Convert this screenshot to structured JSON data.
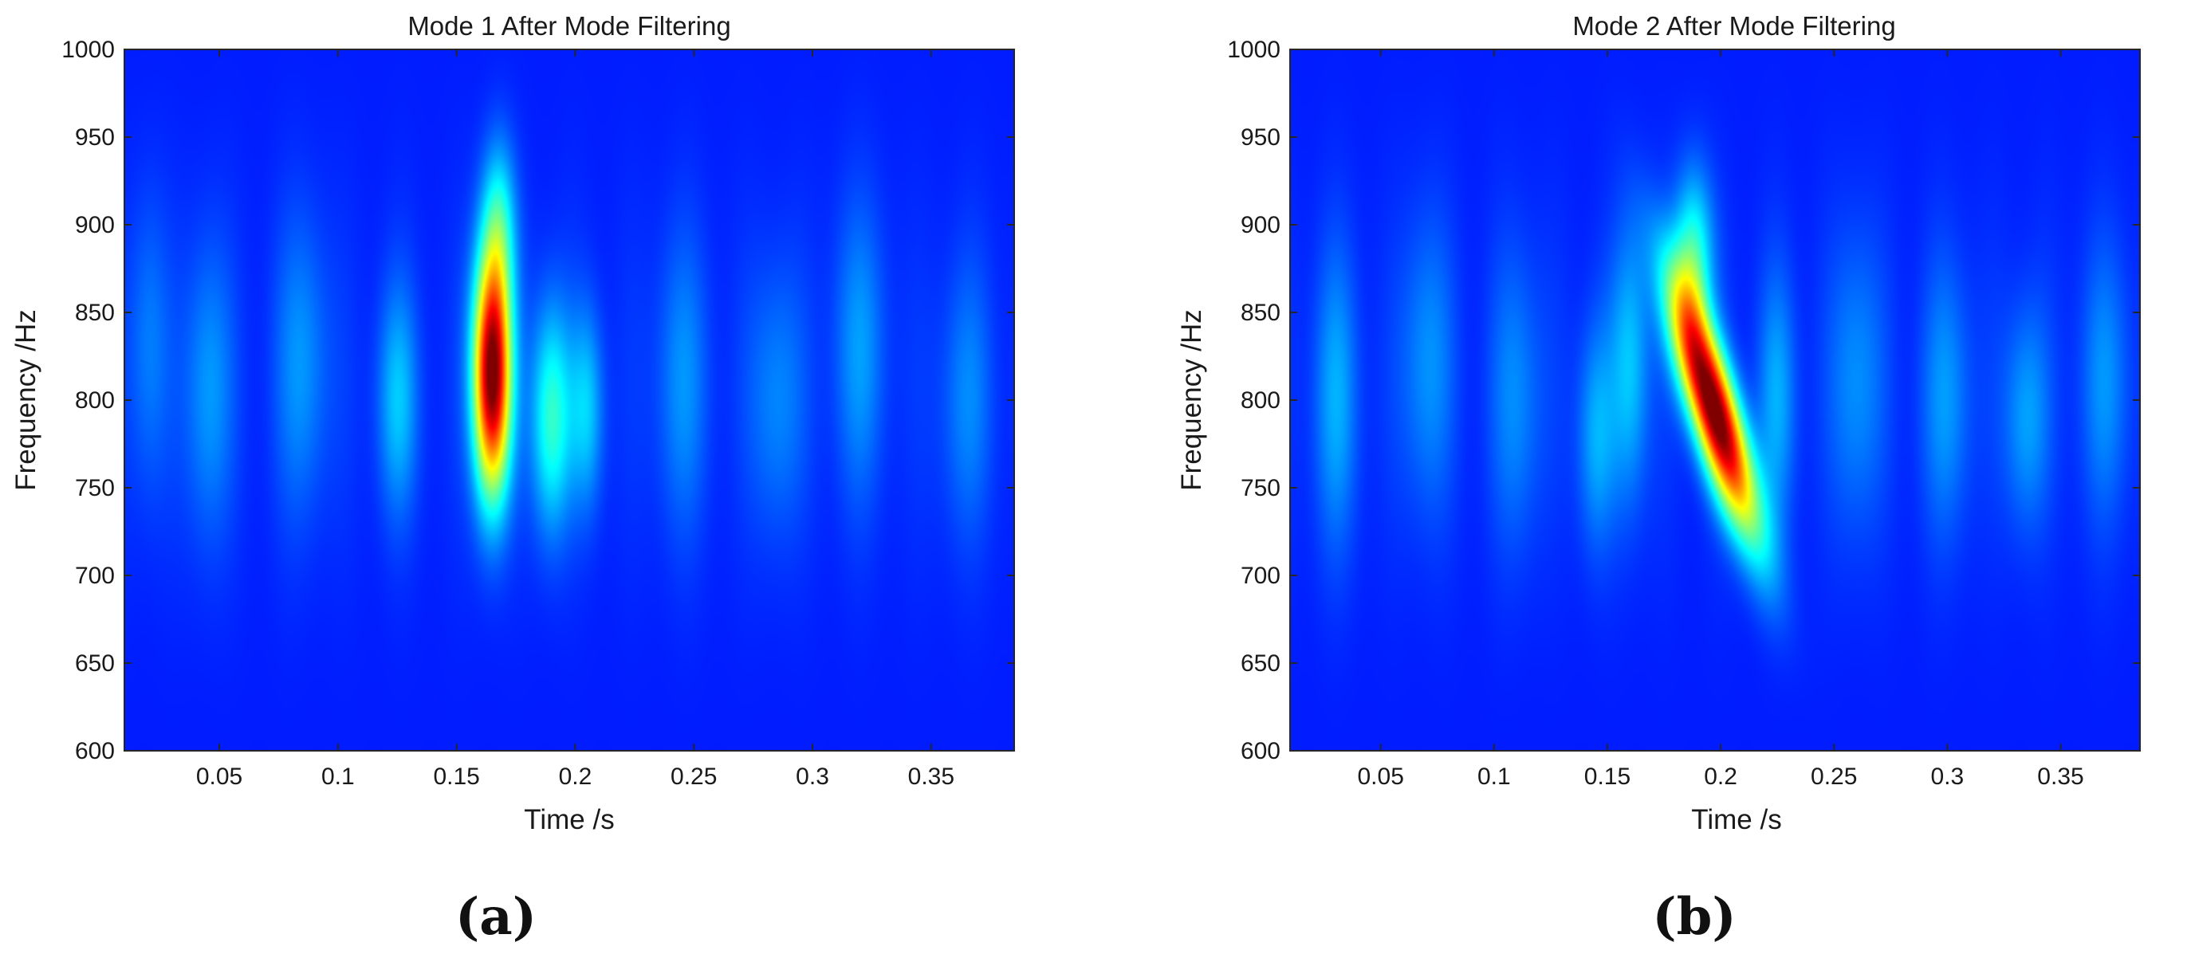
{
  "figure": {
    "captions": [
      "(a)",
      "(b)"
    ]
  },
  "chart_data": [
    {
      "type": "heatmap",
      "title": "Mode 1 After Mode Filtering",
      "xlabel": "Time /s",
      "ylabel": "Frequency /Hz",
      "xlim": [
        0.01,
        0.385
      ],
      "ylim": [
        600,
        1000
      ],
      "xticks": [
        0.05,
        0.1,
        0.15,
        0.2,
        0.25,
        0.3,
        0.35
      ],
      "xtick_labels": [
        "0.05",
        "0.1",
        "0.15",
        "0.2",
        "0.25",
        "0.3",
        "0.35"
      ],
      "yticks": [
        600,
        650,
        700,
        750,
        800,
        850,
        900,
        950,
        1000
      ],
      "ytick_labels": [
        "600",
        "650",
        "700",
        "750",
        "800",
        "850",
        "900",
        "950",
        "1000"
      ],
      "colormap": "jet",
      "peak": {
        "time": 0.165,
        "frequency": 810,
        "intensity": 1.0
      },
      "blobs": [
        {
          "t": 0.165,
          "f": 815,
          "st": 0.0055,
          "sf": 48,
          "a": 1.0,
          "tilt": 0
        },
        {
          "t": 0.168,
          "f": 900,
          "st": 0.005,
          "sf": 35,
          "a": 0.22,
          "tilt": 0
        },
        {
          "t": 0.19,
          "f": 790,
          "st": 0.006,
          "sf": 45,
          "a": 0.3,
          "tilt": 0
        },
        {
          "t": 0.205,
          "f": 795,
          "st": 0.005,
          "sf": 40,
          "a": 0.18,
          "tilt": 0
        },
        {
          "t": 0.125,
          "f": 800,
          "st": 0.006,
          "sf": 45,
          "a": 0.17,
          "tilt": 0
        },
        {
          "t": 0.045,
          "f": 805,
          "st": 0.007,
          "sf": 60,
          "a": 0.13,
          "tilt": 0
        },
        {
          "t": 0.085,
          "f": 820,
          "st": 0.008,
          "sf": 60,
          "a": 0.12,
          "tilt": 0
        },
        {
          "t": 0.245,
          "f": 810,
          "st": 0.008,
          "sf": 60,
          "a": 0.11,
          "tilt": 0
        },
        {
          "t": 0.285,
          "f": 800,
          "st": 0.008,
          "sf": 55,
          "a": 0.11,
          "tilt": 0
        },
        {
          "t": 0.32,
          "f": 830,
          "st": 0.008,
          "sf": 60,
          "a": 0.12,
          "tilt": 0
        },
        {
          "t": 0.365,
          "f": 800,
          "st": 0.008,
          "sf": 55,
          "a": 0.1,
          "tilt": 0
        },
        {
          "t": 0.02,
          "f": 830,
          "st": 0.006,
          "sf": 60,
          "a": 0.1,
          "tilt": 0
        }
      ]
    },
    {
      "type": "heatmap",
      "title": "Mode 2 After Mode Filtering",
      "xlabel": "Time /s",
      "ylabel": "Frequency /Hz",
      "xlim": [
        0.01,
        0.385
      ],
      "ylim": [
        600,
        1000
      ],
      "xticks": [
        0.05,
        0.1,
        0.15,
        0.2,
        0.25,
        0.3,
        0.35
      ],
      "xtick_labels": [
        "0.05",
        "0.1",
        "0.15",
        "0.2",
        "0.25",
        "0.3",
        "0.35"
      ],
      "yticks": [
        600,
        650,
        700,
        750,
        800,
        850,
        900,
        950,
        1000
      ],
      "ytick_labels": [
        "600",
        "650",
        "700",
        "750",
        "800",
        "850",
        "900",
        "950",
        "1000"
      ],
      "colormap": "jet",
      "peak": {
        "time": 0.197,
        "frequency": 795,
        "intensity": 1.0
      },
      "blobs": [
        {
          "t": 0.197,
          "f": 795,
          "st": 0.0075,
          "sf": 50,
          "a": 1.0,
          "tilt": -0.00022
        },
        {
          "t": 0.188,
          "f": 880,
          "st": 0.006,
          "sf": 35,
          "a": 0.3,
          "tilt": 0
        },
        {
          "t": 0.16,
          "f": 820,
          "st": 0.006,
          "sf": 55,
          "a": 0.18,
          "tilt": 0
        },
        {
          "t": 0.145,
          "f": 780,
          "st": 0.006,
          "sf": 45,
          "a": 0.15,
          "tilt": 0
        },
        {
          "t": 0.225,
          "f": 800,
          "st": 0.006,
          "sf": 50,
          "a": 0.14,
          "tilt": 0
        },
        {
          "t": 0.03,
          "f": 800,
          "st": 0.007,
          "sf": 60,
          "a": 0.14,
          "tilt": 0
        },
        {
          "t": 0.07,
          "f": 820,
          "st": 0.008,
          "sf": 60,
          "a": 0.12,
          "tilt": 0
        },
        {
          "t": 0.11,
          "f": 800,
          "st": 0.008,
          "sf": 60,
          "a": 0.11,
          "tilt": 0
        },
        {
          "t": 0.26,
          "f": 810,
          "st": 0.008,
          "sf": 60,
          "a": 0.12,
          "tilt": 0
        },
        {
          "t": 0.3,
          "f": 800,
          "st": 0.008,
          "sf": 55,
          "a": 0.12,
          "tilt": 0
        },
        {
          "t": 0.335,
          "f": 790,
          "st": 0.007,
          "sf": 45,
          "a": 0.14,
          "tilt": 0
        },
        {
          "t": 0.37,
          "f": 810,
          "st": 0.008,
          "sf": 55,
          "a": 0.11,
          "tilt": 0
        }
      ]
    }
  ]
}
